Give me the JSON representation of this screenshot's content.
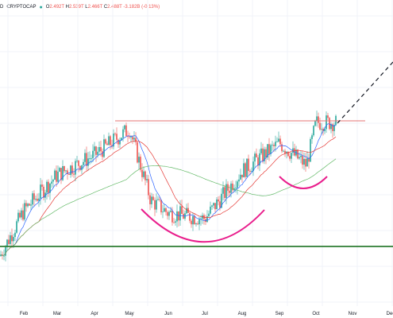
{
  "header": {
    "symbol_fragment": "D",
    "exchange": "CRYPTOCAP",
    "status_dot": "●",
    "open_label": "O",
    "open": "2.492T",
    "high_label": "H",
    "high": "2.539T",
    "low_label": "L",
    "low": "2.466T",
    "close_label": "C",
    "close": "2.488T",
    "change": "-3.182B (-0.13%)"
  },
  "colors": {
    "up_candle": "#26a69a",
    "down_candle": "#ef5350",
    "ma_fast": "#2962ff",
    "ma_mid": "#e53935",
    "ma_slow": "#66bb6a",
    "resistance_line": "#e57373",
    "support_line": "#2e7d32",
    "cup_annotation": "#e91e8c",
    "projection": "#131722",
    "grid": "#f0f3fa",
    "axis_text": "#131722"
  },
  "chart_data": {
    "type": "candlestick",
    "x_axis": {
      "tick_labels": [
        "Feb",
        "Mar",
        "Apr",
        "May",
        "Jun",
        "Jul",
        "Aug",
        "Sep",
        "Oct",
        "Nov",
        "Dec"
      ]
    },
    "grid": true,
    "candles_trend": [
      {
        "month": "Jan",
        "close": 0.78
      },
      {
        "month": "Feb",
        "close": 1.35
      },
      {
        "month": "Mar",
        "close": 1.8
      },
      {
        "month": "Apr",
        "close": 2.05
      },
      {
        "month": "May",
        "close": 2.38
      },
      {
        "month": "May-late",
        "close": 1.48
      },
      {
        "month": "Jun",
        "close": 1.32
      },
      {
        "month": "Jul",
        "close": 1.25
      },
      {
        "month": "Aug",
        "close": 1.85
      },
      {
        "month": "Sep",
        "close": 2.2
      },
      {
        "month": "Sep-late",
        "close": 1.92
      },
      {
        "month": "Oct",
        "close": 2.46
      }
    ],
    "lines": [
      {
        "kind": "horizontal",
        "role": "resistance",
        "value": 2.48,
        "from": "Apr",
        "to": "Oct-end"
      },
      {
        "kind": "horizontal",
        "role": "support",
        "value": 0.9,
        "from": "Jan",
        "to": "Dec"
      }
    ],
    "annotations": [
      {
        "kind": "cup-arc",
        "from": "May",
        "to": "Aug"
      },
      {
        "kind": "handle-arc",
        "from": "Sep",
        "to": "Oct"
      },
      {
        "kind": "dashed-projection",
        "from": "Oct",
        "to": "Dec"
      }
    ]
  }
}
